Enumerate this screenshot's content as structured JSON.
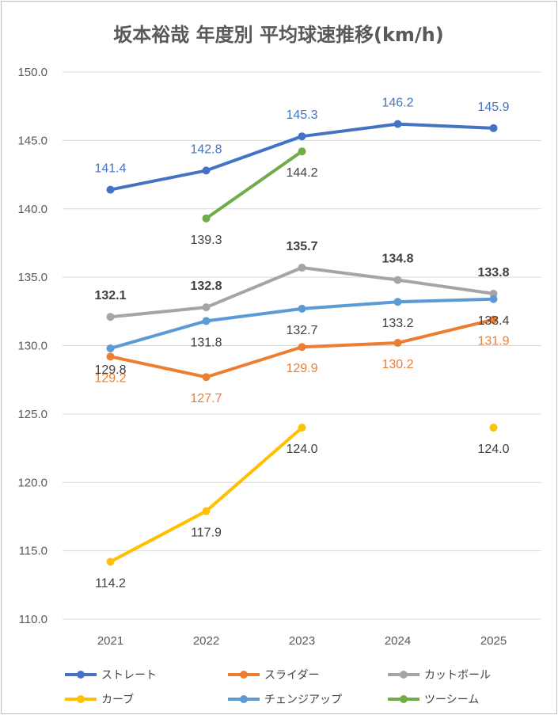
{
  "chart_data": {
    "type": "line",
    "title": "坂本裕哉 年度別 平均球速推移(km/h)",
    "xlabel": "",
    "ylabel": "",
    "categories": [
      "2021",
      "2022",
      "2023",
      "2024",
      "2025"
    ],
    "ylim": [
      110.0,
      150.0
    ],
    "yticks": [
      "110.0",
      "115.0",
      "120.0",
      "125.0",
      "130.0",
      "135.0",
      "140.0",
      "145.0",
      "150.0"
    ],
    "grid": true,
    "legend_position": "bottom",
    "series": [
      {
        "name": "ストレート",
        "color": "#4472C4",
        "label_color": "#4472C4",
        "label_bold": false,
        "label_pos": "above",
        "values": [
          141.4,
          142.8,
          145.3,
          146.2,
          145.9
        ],
        "labels": [
          "141.4",
          "142.8",
          "145.3",
          "146.2",
          "145.9"
        ]
      },
      {
        "name": "スライダー",
        "color": "#ED7D31",
        "label_color": "#ED7D31",
        "label_bold": false,
        "label_pos": "below",
        "values": [
          129.2,
          127.7,
          129.9,
          130.2,
          131.9
        ],
        "labels": [
          "129.2",
          "127.7",
          "129.9",
          "130.2",
          "131.9"
        ]
      },
      {
        "name": "カットボール",
        "color": "#A5A5A5",
        "label_color": "#404040",
        "label_bold": true,
        "label_pos": "above",
        "values": [
          132.1,
          132.8,
          135.7,
          134.8,
          133.8
        ],
        "labels": [
          "132.1",
          "132.8",
          "135.7",
          "134.8",
          "133.8"
        ]
      },
      {
        "name": "カーブ",
        "color": "#FFC000",
        "label_color": "#404040",
        "label_bold": false,
        "label_pos": "below",
        "values": [
          114.2,
          117.9,
          124.0,
          null,
          124.0
        ],
        "labels": [
          "114.2",
          "117.9",
          "124.0",
          null,
          "124.0"
        ]
      },
      {
        "name": "チェンジアップ",
        "color": "#5B9BD5",
        "label_color": "#404040",
        "label_bold": false,
        "label_pos": "below",
        "values": [
          129.8,
          131.8,
          132.7,
          133.2,
          133.4
        ],
        "labels": [
          "129.8",
          "131.8",
          "132.7",
          "133.2",
          "133.4"
        ]
      },
      {
        "name": "ツーシーム",
        "color": "#70AD47",
        "label_color": "#404040",
        "label_bold": false,
        "label_pos": "below",
        "values": [
          null,
          139.3,
          144.2,
          null,
          null
        ],
        "labels": [
          null,
          "139.3",
          "144.2",
          null,
          null
        ]
      }
    ]
  }
}
